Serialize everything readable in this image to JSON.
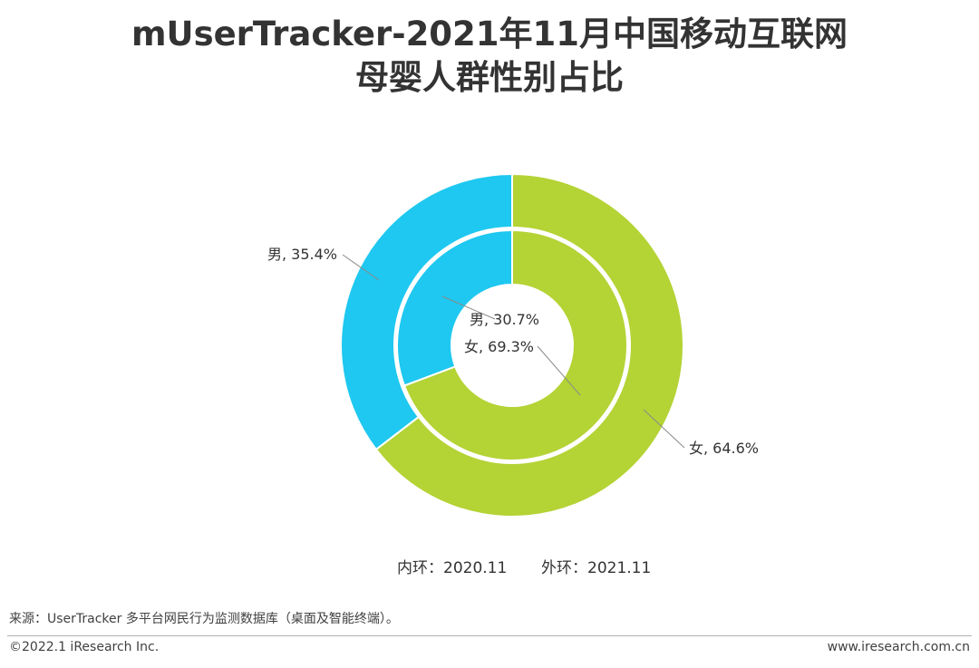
{
  "title": {
    "line1": "mUserTracker-2021年11月中国移动互联网",
    "line2": "母婴人群性别占比"
  },
  "chart_data": {
    "type": "pie",
    "variant": "nested-donut",
    "rings": [
      {
        "ring": "inner",
        "period": "2020.11",
        "slices": [
          {
            "label": "男",
            "value": 30.7,
            "display": "男, 30.7%",
            "color": "#1ec8f0"
          },
          {
            "label": "女",
            "value": 69.3,
            "display": "女, 69.3%",
            "color": "#b4d335"
          }
        ]
      },
      {
        "ring": "outer",
        "period": "2021.11",
        "slices": [
          {
            "label": "男",
            "value": 35.4,
            "display": "男, 35.4%",
            "color": "#1ec8f0"
          },
          {
            "label": "女",
            "value": 64.6,
            "display": "女, 64.6%",
            "color": "#b4d335"
          }
        ]
      }
    ],
    "legend_placement": "bottom"
  },
  "legend": {
    "inner_note": "内环：2020.11",
    "outer_note": "外环：2021.11"
  },
  "footer": {
    "source": "来源：UserTracker 多平台网民行为监测数据库（桌面及智能终端）。",
    "copyright": "©2022.1 iResearch Inc.",
    "url": "www.iresearch.com.cn"
  }
}
